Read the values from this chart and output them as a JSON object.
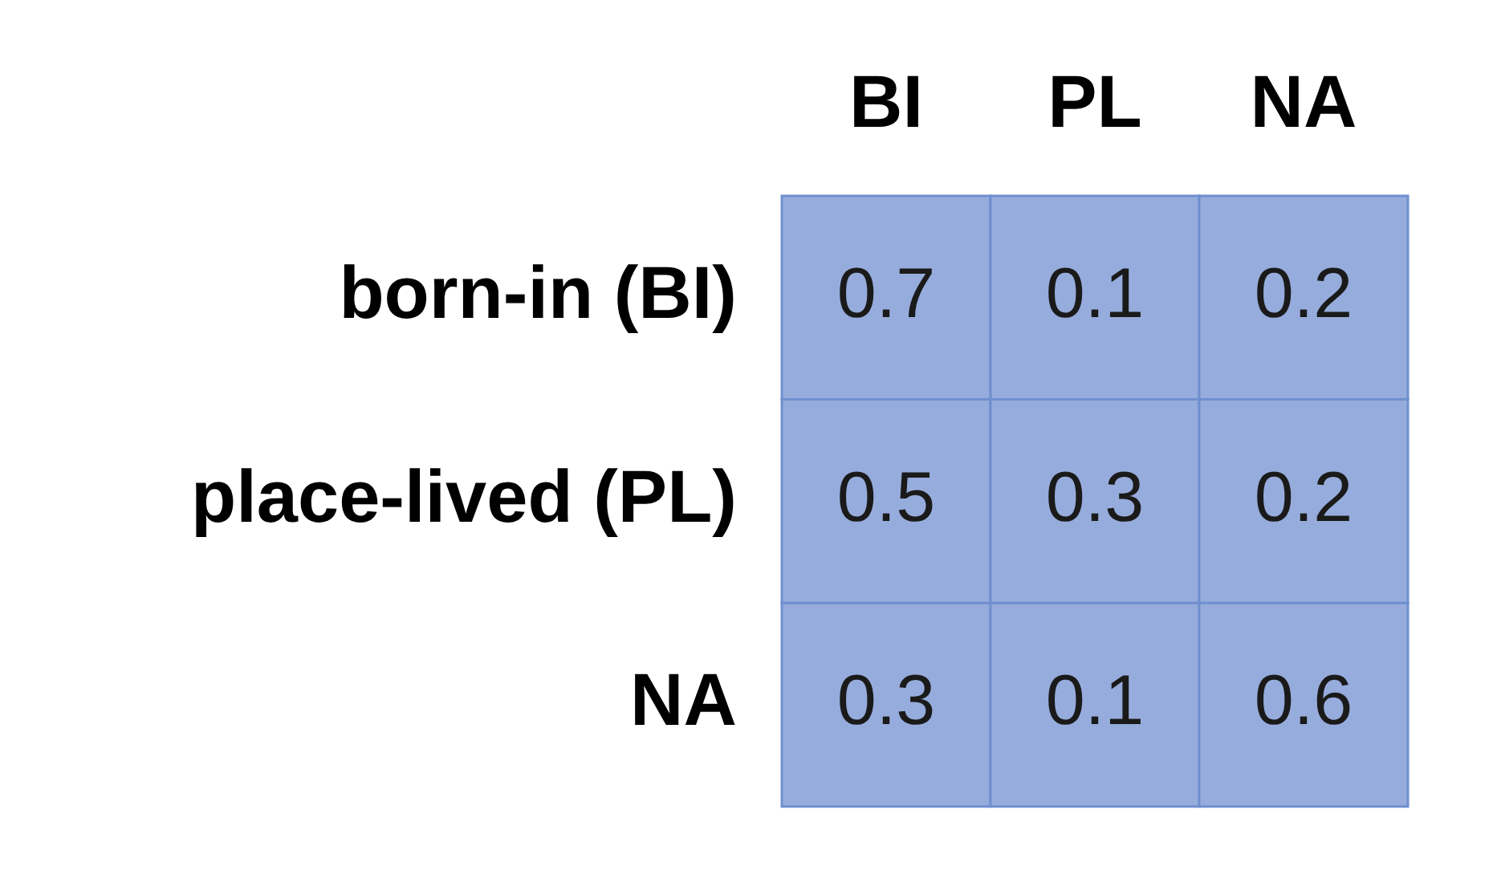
{
  "chart_data": {
    "type": "heatmap",
    "categories": [
      "BI",
      "PL",
      "NA"
    ],
    "y_categories": [
      "born-in (BI)",
      "place-lived (PL)",
      "NA"
    ],
    "cells": [
      [
        0.7,
        0.1,
        0.2
      ],
      [
        0.5,
        0.3,
        0.2
      ],
      [
        0.3,
        0.1,
        0.6
      ]
    ],
    "color": "#96acdc",
    "data_labels": true,
    "legend": false
  }
}
